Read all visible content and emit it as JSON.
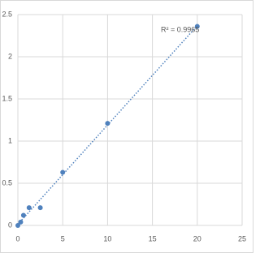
{
  "chart_data": {
    "type": "scatter",
    "x": [
      0,
      0.3125,
      0.625,
      1.25,
      2.5,
      5,
      10,
      20
    ],
    "values": [
      0.0,
      0.04,
      0.12,
      0.21,
      0.21,
      0.63,
      1.21,
      2.36
    ],
    "color": "#4f81bd",
    "trendline": "linear",
    "annotation": "R² = 0.9965",
    "xlim": [
      0,
      25
    ],
    "xticks": [
      0,
      5,
      10,
      15,
      20,
      25
    ],
    "ylim": [
      0,
      2.5
    ],
    "yticks": [
      0,
      0.5,
      1,
      1.5,
      2,
      2.5
    ],
    "grid": true
  }
}
